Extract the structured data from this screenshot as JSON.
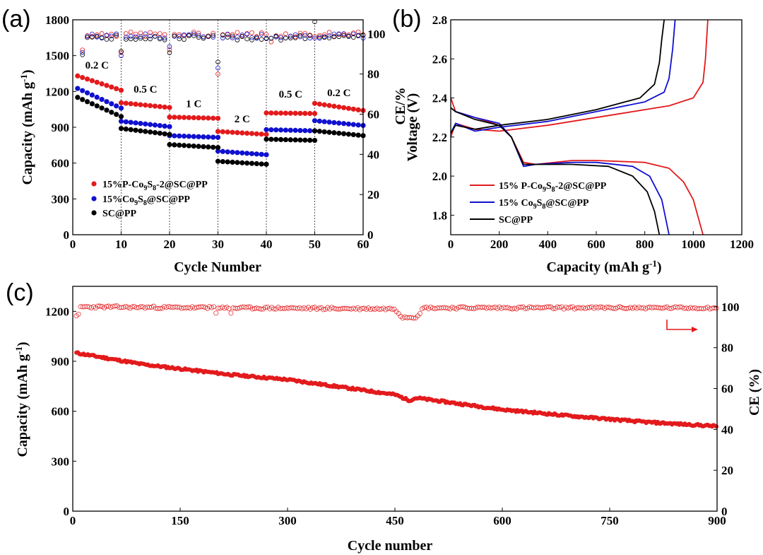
{
  "chart_data": [
    {
      "panel": "(a)",
      "type": "scatter",
      "xlabel": "Cycle Number",
      "ylabel": "Capacity (mAh g",
      "ylabel_sup": "-1",
      "ylabel_close": ")",
      "y2label": "CE/%",
      "xlim": [
        0,
        60
      ],
      "ylim": [
        0,
        1800
      ],
      "y2lim": [
        0,
        107
      ],
      "xticks": [
        "0",
        "10",
        "20",
        "30",
        "40",
        "50",
        "60"
      ],
      "yticks": [
        "0",
        "300",
        "600",
        "900",
        "1200",
        "1500",
        "1800"
      ],
      "y2ticks": [
        "0",
        "20",
        "40",
        "60",
        "80",
        "100"
      ],
      "rate_labels": [
        "0.2 C",
        "0.5 C",
        "1 C",
        "2 C",
        "0.5 C",
        "0.2 C"
      ],
      "rate_label_pos": [
        [
          5,
          1390
        ],
        [
          15,
          1190
        ],
        [
          25,
          1070
        ],
        [
          35,
          940
        ],
        [
          45,
          1150
        ],
        [
          55,
          1160
        ]
      ],
      "dividers": [
        10,
        20,
        30,
        40,
        50
      ],
      "legend": [
        {
          "base": "15%P-Co",
          "sub1": "9",
          "mid": "S",
          "sub2": "8",
          "tail": "-2@SC@PP"
        },
        {
          "base": "15%Co",
          "sub1": "9",
          "mid": "S",
          "sub2": "8",
          "tail": "@SC@PP"
        },
        {
          "base": "SC@PP",
          "sub1": "",
          "mid": "",
          "sub2": "",
          "tail": ""
        }
      ],
      "series": [
        {
          "name": "15%P-Co9S8-2@SC@PP",
          "color": "#e31a1c",
          "segments": [
            [
              1,
              10,
              1330,
              1210
            ],
            [
              10,
              20,
              1105,
              1065
            ],
            [
              20,
              30,
              985,
              975
            ],
            [
              30,
              40,
              865,
              840
            ],
            [
              40,
              50,
              1020,
              1015
            ],
            [
              50,
              60,
              1100,
              1040
            ]
          ]
        },
        {
          "name": "15%Co9S8@SC@PP",
          "color": "#1010d0",
          "segments": [
            [
              1,
              10,
              1225,
              1060
            ],
            [
              10,
              20,
              950,
              905
            ],
            [
              20,
              30,
              830,
              815
            ],
            [
              30,
              40,
              700,
              670
            ],
            [
              40,
              50,
              880,
              870
            ],
            [
              50,
              60,
              955,
              915
            ]
          ]
        },
        {
          "name": "SC@PP",
          "color": "#000000",
          "segments": [
            [
              1,
              10,
              1150,
              990
            ],
            [
              10,
              20,
              890,
              840
            ],
            [
              20,
              30,
              755,
              730
            ],
            [
              30,
              40,
              615,
              590
            ],
            [
              40,
              50,
              800,
              790
            ],
            [
              50,
              60,
              870,
              830
            ]
          ]
        }
      ]
    },
    {
      "panel": "(b)",
      "type": "line",
      "xlabel": "Capacity (mAh g",
      "xlabel_sup": "-1",
      "xlabel_close": ")",
      "ylabel": "Voltage (V)",
      "xlim": [
        0,
        1200
      ],
      "ylim": [
        1.7,
        2.8
      ],
      "xticks": [
        "0",
        "200",
        "400",
        "600",
        "800",
        "1000",
        "1200"
      ],
      "yticks": [
        "1.8",
        "2.0",
        "2.2",
        "2.4",
        "2.6",
        "2.8"
      ],
      "legend": [
        {
          "base": "15% P-Co",
          "sub1": "9",
          "mid": "S",
          "sub2": "8",
          "tail": "-2@SC@PP"
        },
        {
          "base": "15% Co",
          "sub1": "9",
          "mid": "S",
          "sub2": "8",
          "tail": "@SC@PP"
        },
        {
          "base": "SC@PP",
          "sub1": "",
          "mid": "",
          "sub2": "",
          "tail": ""
        }
      ],
      "series": [
        {
          "name": "15% P-Co9S8-2@SC@PP",
          "color": "#e31a1c",
          "discharge": [
            [
              0,
              2.4
            ],
            [
              20,
              2.33
            ],
            [
              100,
              2.3
            ],
            [
              200,
              2.26
            ],
            [
              250,
              2.2
            ],
            [
              300,
              2.07
            ],
            [
              350,
              2.06
            ],
            [
              500,
              2.08
            ],
            [
              600,
              2.08
            ],
            [
              800,
              2.07
            ],
            [
              900,
              2.04
            ],
            [
              960,
              1.97
            ],
            [
              1000,
              1.88
            ],
            [
              1040,
              1.7
            ]
          ],
          "charge": [
            [
              0,
              2.2
            ],
            [
              20,
              2.27
            ],
            [
              100,
              2.24
            ],
            [
              200,
              2.23
            ],
            [
              400,
              2.26
            ],
            [
              700,
              2.32
            ],
            [
              900,
              2.36
            ],
            [
              1000,
              2.4
            ],
            [
              1040,
              2.48
            ],
            [
              1050,
              2.6
            ],
            [
              1060,
              2.8
            ]
          ]
        },
        {
          "name": "15% Co9S8@SC@PP",
          "color": "#1010d0",
          "discharge": [
            [
              0,
              2.35
            ],
            [
              20,
              2.33
            ],
            [
              100,
              2.3
            ],
            [
              200,
              2.27
            ],
            [
              250,
              2.2
            ],
            [
              300,
              2.05
            ],
            [
              350,
              2.06
            ],
            [
              500,
              2.07
            ],
            [
              600,
              2.07
            ],
            [
              750,
              2.05
            ],
            [
              820,
              2.0
            ],
            [
              870,
              1.88
            ],
            [
              900,
              1.7
            ]
          ],
          "charge": [
            [
              0,
              2.22
            ],
            [
              20,
              2.27
            ],
            [
              100,
              2.23
            ],
            [
              200,
              2.25
            ],
            [
              400,
              2.28
            ],
            [
              600,
              2.33
            ],
            [
              800,
              2.38
            ],
            [
              880,
              2.43
            ],
            [
              900,
              2.5
            ],
            [
              915,
              2.65
            ],
            [
              925,
              2.8
            ]
          ]
        },
        {
          "name": "SC@PP",
          "color": "#000000",
          "discharge": [
            [
              0,
              2.35
            ],
            [
              20,
              2.33
            ],
            [
              100,
              2.29
            ],
            [
              200,
              2.26
            ],
            [
              250,
              2.2
            ],
            [
              300,
              2.06
            ],
            [
              350,
              2.06
            ],
            [
              500,
              2.06
            ],
            [
              650,
              2.05
            ],
            [
              750,
              2.0
            ],
            [
              810,
              1.92
            ],
            [
              840,
              1.82
            ],
            [
              860,
              1.7
            ]
          ],
          "charge": [
            [
              0,
              2.22
            ],
            [
              20,
              2.26
            ],
            [
              100,
              2.24
            ],
            [
              200,
              2.26
            ],
            [
              400,
              2.29
            ],
            [
              600,
              2.34
            ],
            [
              780,
              2.4
            ],
            [
              840,
              2.47
            ],
            [
              860,
              2.58
            ],
            [
              870,
              2.7
            ],
            [
              880,
              2.8
            ]
          ]
        }
      ]
    },
    {
      "panel": "(c)",
      "type": "scatter",
      "xlabel": "Cycle number",
      "ylabel": "Capacity (mAh g",
      "ylabel_sup": "-1",
      "ylabel_close": ")",
      "y2label": "CE (%)",
      "xlim": [
        0,
        900
      ],
      "ylim": [
        0,
        1350
      ],
      "y2lim": [
        0,
        110
      ],
      "xticks": [
        "0",
        "150",
        "300",
        "450",
        "600",
        "750",
        "900"
      ],
      "yticks": [
        "0",
        "300",
        "600",
        "900",
        "1200"
      ],
      "y2ticks": [
        "0",
        "20",
        "40",
        "60",
        "80",
        "100"
      ],
      "series": [
        {
          "name": "Capacity",
          "color": "#e31a1c",
          "points": [
            [
              5,
              950
            ],
            [
              100,
              880
            ],
            [
              220,
              820
            ],
            [
              300,
              790
            ],
            [
              450,
              700
            ],
            [
              470,
              665
            ],
            [
              480,
              680
            ],
            [
              600,
              610
            ],
            [
              700,
              570
            ],
            [
              800,
              535
            ],
            [
              900,
              510
            ]
          ]
        },
        {
          "name": "CE",
          "color": "#e31a1c",
          "points": [
            [
              5,
              100
            ],
            [
              200,
              99.5
            ],
            [
              450,
              99
            ],
            [
              460,
              95
            ],
            [
              480,
              95
            ],
            [
              490,
              99.5
            ],
            [
              700,
              99.5
            ],
            [
              900,
              99.5
            ]
          ]
        }
      ]
    }
  ]
}
